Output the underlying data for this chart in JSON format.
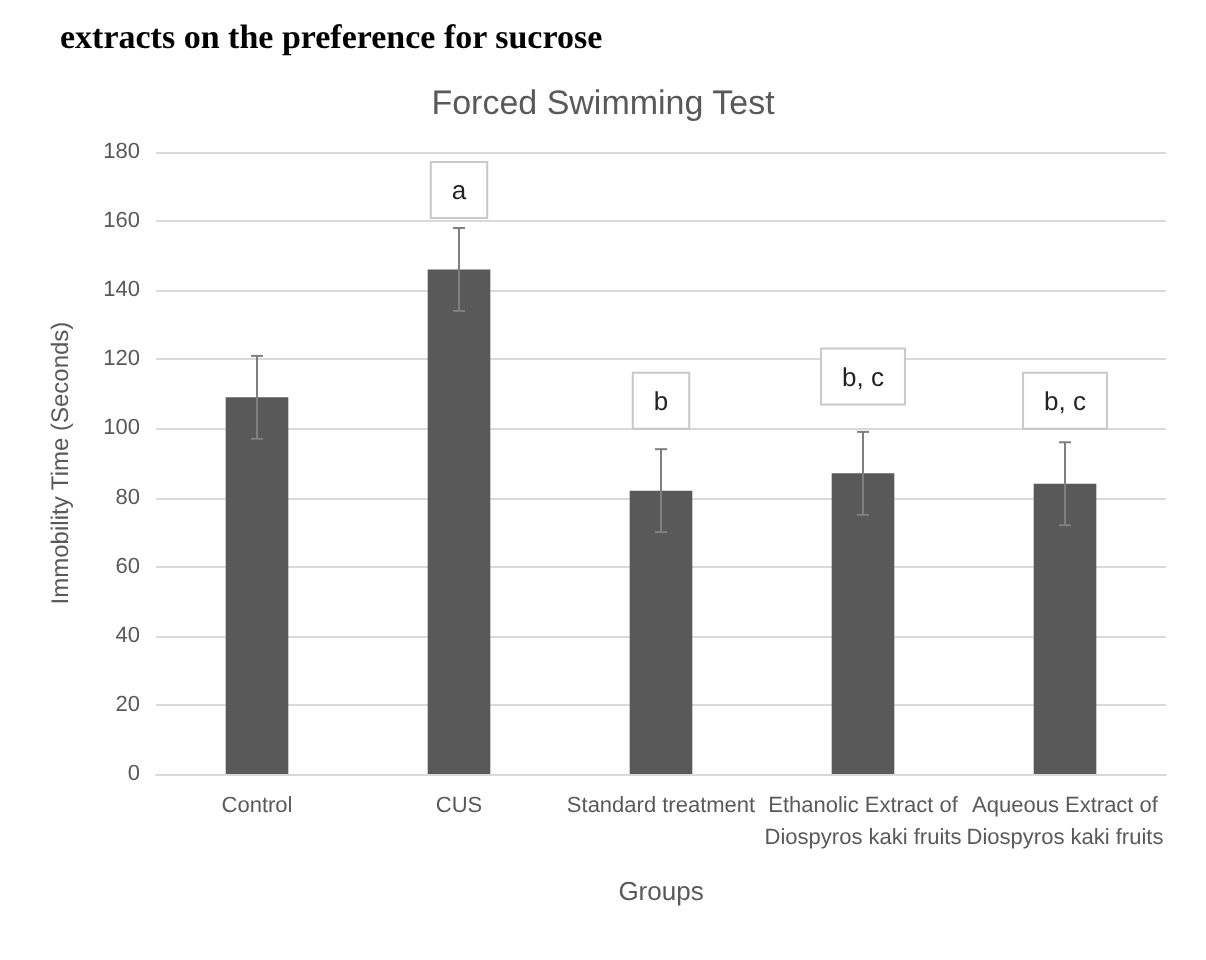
{
  "chart_data": {
    "type": "bar",
    "title": "Forced Swimming Test",
    "xlabel": "Groups",
    "ylabel": "Immobility Time (Seconds)",
    "categories": [
      "Control",
      "CUS",
      "Standard treatment",
      "Ethanolic Extract of\nDiospyros kaki fruits",
      "Aqueous Extract of\nDiospyros kaki fruits"
    ],
    "values": [
      109,
      146,
      82,
      87,
      84
    ],
    "errors": [
      12,
      12,
      12,
      12,
      12
    ],
    "color": "#595959",
    "ylim": [
      0,
      180
    ],
    "yticks": [
      0,
      20,
      40,
      60,
      80,
      100,
      120,
      140,
      160,
      180
    ],
    "grid": "y",
    "annotations": [
      "extracts on the preference for sucrose",
      {
        "text": "a",
        "x": "CUS",
        "y": 169
      },
      {
        "text": "b",
        "x": "Standard treatment",
        "y": 108
      },
      {
        "text": "b, c",
        "x": "Ethanolic Extract of\nDiospyros kaki fruits",
        "y": 115
      },
      {
        "text": "b, c",
        "x": "Aqueous Extract of\nDiospyros kaki fruits",
        "y": 108
      }
    ]
  }
}
